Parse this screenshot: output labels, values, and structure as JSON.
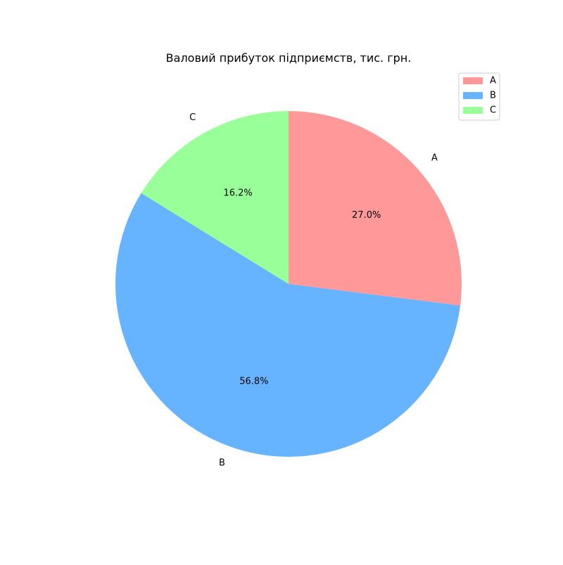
{
  "chart_data": {
    "type": "pie",
    "title": "Валовий прибуток підприємств, тис. грн.",
    "categories": [
      "A",
      "B",
      "C"
    ],
    "values": [
      27.0,
      56.8,
      16.2
    ],
    "percent_labels": [
      "27.0%",
      "56.8%",
      "16.2%"
    ],
    "colors": [
      "#ff9999",
      "#66b3ff",
      "#99ff99"
    ],
    "start_angle_deg": 90,
    "direction": "clockwise",
    "legend": {
      "placement": "top-right",
      "entries": [
        "A",
        "B",
        "C"
      ]
    }
  }
}
